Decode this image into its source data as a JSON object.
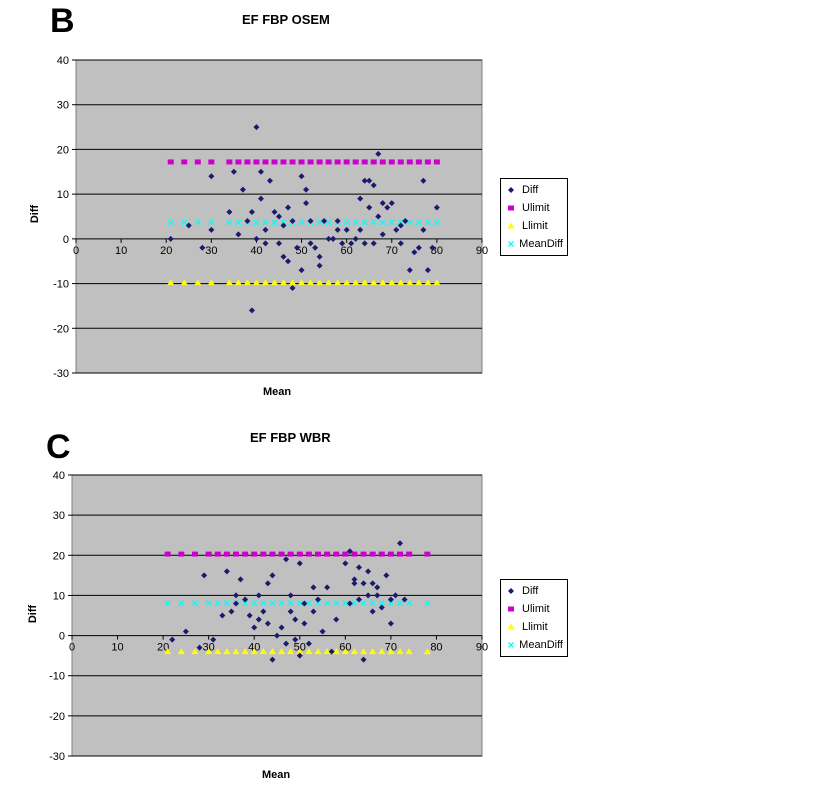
{
  "chart_data": [
    {
      "type": "scatter",
      "panel_letter": "B",
      "title": "EF  FBP OSEM",
      "xlabel": "Mean",
      "ylabel": "Diff",
      "xlim": [
        0,
        90
      ],
      "ylim": [
        -30,
        40
      ],
      "xticks": [
        0,
        10,
        20,
        30,
        40,
        50,
        60,
        70,
        80,
        90
      ],
      "yticks": [
        -30,
        -20,
        -10,
        0,
        10,
        20,
        30,
        40
      ],
      "grid": "horizontal",
      "legend_position": "right",
      "series": [
        {
          "name": "Diff",
          "color": "#1a1a6e",
          "marker": "diamond",
          "x": [
            21,
            25,
            28,
            30,
            30,
            34,
            35,
            36,
            37,
            38,
            39,
            39,
            40,
            40,
            41,
            41,
            42,
            42,
            43,
            44,
            45,
            45,
            46,
            46,
            47,
            47,
            48,
            48,
            49,
            50,
            50,
            51,
            51,
            52,
            52,
            53,
            54,
            54,
            55,
            56,
            57,
            57,
            58,
            58,
            59,
            60,
            61,
            62,
            63,
            63,
            64,
            64,
            65,
            65,
            66,
            66,
            67,
            67,
            68,
            68,
            69,
            70,
            71,
            72,
            72,
            73,
            74,
            75,
            76,
            77,
            77,
            78,
            79,
            80
          ],
          "y": [
            0,
            3,
            -2,
            2,
            14,
            6,
            15,
            1,
            11,
            4,
            -16,
            6,
            25,
            0,
            9,
            15,
            -1,
            2,
            13,
            6,
            -1,
            5,
            -4,
            3,
            -5,
            7,
            -11,
            4,
            -2,
            14,
            -7,
            11,
            8,
            4,
            -1,
            -2,
            -6,
            -4,
            4,
            0,
            0,
            0,
            4,
            2,
            -1,
            2,
            -1,
            0,
            9,
            2,
            13,
            -1,
            7,
            13,
            -1,
            12,
            5,
            19,
            8,
            1,
            7,
            8,
            2,
            -1,
            3,
            4,
            -7,
            -3,
            -2,
            2,
            13,
            -7,
            -2,
            7
          ]
        },
        {
          "name": "Ulimit",
          "color": "#cc00cc",
          "marker": "square",
          "x": [
            21,
            24,
            27,
            30,
            34,
            36,
            38,
            40,
            42,
            44,
            46,
            48,
            50,
            52,
            54,
            56,
            58,
            60,
            62,
            64,
            66,
            68,
            70,
            72,
            74,
            76,
            78,
            80
          ],
          "y": [
            17.2,
            17.2,
            17.2,
            17.2,
            17.2,
            17.2,
            17.2,
            17.2,
            17.2,
            17.2,
            17.2,
            17.2,
            17.2,
            17.2,
            17.2,
            17.2,
            17.2,
            17.2,
            17.2,
            17.2,
            17.2,
            17.2,
            17.2,
            17.2,
            17.2,
            17.2,
            17.2,
            17.2
          ]
        },
        {
          "name": "Llimit",
          "color": "#ffff00",
          "marker": "triangle",
          "x": [
            21,
            24,
            27,
            30,
            34,
            36,
            38,
            40,
            42,
            44,
            46,
            48,
            50,
            52,
            54,
            56,
            58,
            60,
            62,
            64,
            66,
            68,
            70,
            72,
            74,
            76,
            78,
            80
          ],
          "y": [
            -9.8,
            -9.8,
            -9.8,
            -9.8,
            -9.8,
            -9.8,
            -9.8,
            -9.8,
            -9.8,
            -9.8,
            -9.8,
            -9.8,
            -9.8,
            -9.8,
            -9.8,
            -9.8,
            -9.8,
            -9.8,
            -9.8,
            -9.8,
            -9.8,
            -9.8,
            -9.8,
            -9.8,
            -9.8,
            -9.8,
            -9.8,
            -9.8
          ]
        },
        {
          "name": "MeanDiff",
          "color": "#00ffff",
          "marker": "x",
          "x": [
            21,
            24,
            27,
            30,
            34,
            36,
            38,
            40,
            42,
            44,
            46,
            48,
            50,
            52,
            54,
            56,
            58,
            60,
            62,
            64,
            66,
            68,
            70,
            72,
            74,
            76,
            78,
            80
          ],
          "y": [
            3.7,
            3.7,
            3.7,
            3.7,
            3.7,
            3.7,
            3.7,
            3.7,
            3.7,
            3.7,
            3.7,
            3.7,
            3.7,
            3.7,
            3.7,
            3.7,
            3.7,
            3.7,
            3.7,
            3.7,
            3.7,
            3.7,
            3.7,
            3.7,
            3.7,
            3.7,
            3.7,
            3.7
          ]
        }
      ]
    },
    {
      "type": "scatter",
      "panel_letter": "C",
      "title": "EF FBP WBR",
      "xlabel": "Mean",
      "ylabel": "Diff",
      "xlim": [
        0,
        90
      ],
      "ylim": [
        -30,
        40
      ],
      "xticks": [
        0,
        10,
        20,
        30,
        40,
        50,
        60,
        70,
        80,
        90
      ],
      "yticks": [
        -30,
        -20,
        -10,
        0,
        10,
        20,
        30,
        40
      ],
      "grid": "horizontal",
      "legend_position": "right",
      "series": [
        {
          "name": "Diff",
          "color": "#1a1a6e",
          "marker": "diamond",
          "x": [
            22,
            25,
            28,
            29,
            31,
            33,
            34,
            35,
            36,
            36,
            37,
            38,
            39,
            40,
            41,
            41,
            42,
            43,
            43,
            44,
            44,
            45,
            46,
            47,
            47,
            48,
            48,
            49,
            49,
            50,
            50,
            51,
            51,
            52,
            53,
            53,
            54,
            55,
            56,
            57,
            58,
            60,
            61,
            61,
            62,
            62,
            63,
            63,
            64,
            64,
            65,
            65,
            66,
            66,
            67,
            67,
            68,
            69,
            70,
            70,
            71,
            72,
            73
          ],
          "y": [
            -1,
            1,
            -3,
            15,
            -1,
            5,
            16,
            6,
            10,
            8,
            14,
            9,
            5,
            2,
            10,
            4,
            6,
            13,
            3,
            15,
            -6,
            0,
            2,
            19,
            -2,
            6,
            10,
            4,
            -1,
            18,
            -5,
            3,
            8,
            -2,
            12,
            6,
            9,
            1,
            12,
            -4,
            4,
            18,
            8,
            21,
            13,
            14,
            9,
            17,
            -6,
            13,
            16,
            10,
            13,
            6,
            12,
            10,
            7,
            15,
            9,
            3,
            10,
            23,
            9
          ]
        },
        {
          "name": "Ulimit",
          "color": "#cc00cc",
          "marker": "square",
          "x": [
            21,
            24,
            27,
            30,
            32,
            34,
            36,
            38,
            40,
            42,
            44,
            46,
            48,
            50,
            52,
            54,
            56,
            58,
            60,
            62,
            64,
            66,
            68,
            70,
            72,
            74,
            78
          ],
          "y": [
            20.3,
            20.3,
            20.3,
            20.3,
            20.3,
            20.3,
            20.3,
            20.3,
            20.3,
            20.3,
            20.3,
            20.3,
            20.3,
            20.3,
            20.3,
            20.3,
            20.3,
            20.3,
            20.3,
            20.3,
            20.3,
            20.3,
            20.3,
            20.3,
            20.3,
            20.3,
            20.3
          ]
        },
        {
          "name": "Llimit",
          "color": "#ffff00",
          "marker": "triangle",
          "x": [
            21,
            24,
            27,
            30,
            32,
            34,
            36,
            38,
            40,
            42,
            44,
            46,
            48,
            50,
            52,
            54,
            56,
            58,
            60,
            62,
            64,
            66,
            68,
            70,
            72,
            74,
            78
          ],
          "y": [
            -4,
            -4,
            -4,
            -4,
            -4,
            -4,
            -4,
            -4,
            -4,
            -4,
            -4,
            -4,
            -4,
            -4,
            -4,
            -4,
            -4,
            -4,
            -4,
            -4,
            -4,
            -4,
            -4,
            -4,
            -4,
            -4,
            -4
          ]
        },
        {
          "name": "MeanDiff",
          "color": "#00ffff",
          "marker": "x",
          "x": [
            21,
            24,
            27,
            30,
            32,
            34,
            36,
            38,
            40,
            42,
            44,
            46,
            48,
            50,
            52,
            54,
            56,
            58,
            60,
            62,
            64,
            66,
            68,
            70,
            72,
            74,
            78
          ],
          "y": [
            8.1,
            8.1,
            8.1,
            8.1,
            8.1,
            8.1,
            8.1,
            8.1,
            8.1,
            8.1,
            8.1,
            8.1,
            8.1,
            8.1,
            8.1,
            8.1,
            8.1,
            8.1,
            8.1,
            8.1,
            8.1,
            8.1,
            8.1,
            8.1,
            8.1,
            8.1,
            8.1
          ]
        }
      ]
    }
  ]
}
